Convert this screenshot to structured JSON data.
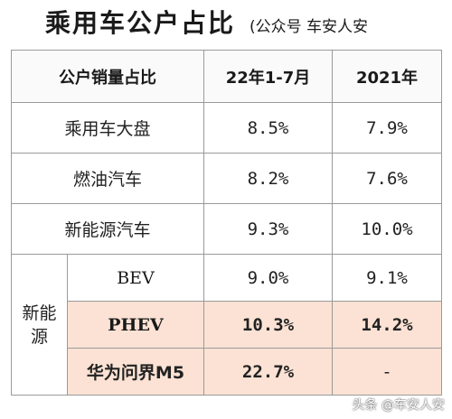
{
  "title": {
    "main": "乘用车公户占比",
    "sub": "(公众号 车安人安"
  },
  "table": {
    "headers": [
      "公户销量占比",
      "22年1-7月",
      "2021年"
    ],
    "rows": [
      {
        "label": "乘用车大盘",
        "v1": "8.5%",
        "v2": "7.9%"
      },
      {
        "label": "燃油汽车",
        "v1": "8.2%",
        "v2": "7.6%"
      },
      {
        "label": "新能源汽车",
        "v1": "9.3%",
        "v2": "10.0%"
      }
    ],
    "group": {
      "label": "新能\n源",
      "rows": [
        {
          "label": "BEV",
          "v1": "9.0%",
          "v2": "9.1%"
        },
        {
          "label": "PHEV",
          "v1": "10.3%",
          "v2": "14.2%"
        },
        {
          "label": "华为问界M5",
          "v1": "22.7%",
          "v2": "-"
        }
      ]
    }
  },
  "colors": {
    "highlight": "#fbe2d4",
    "border": "#9a9a9a"
  },
  "watermark": "头条 @车安人安"
}
